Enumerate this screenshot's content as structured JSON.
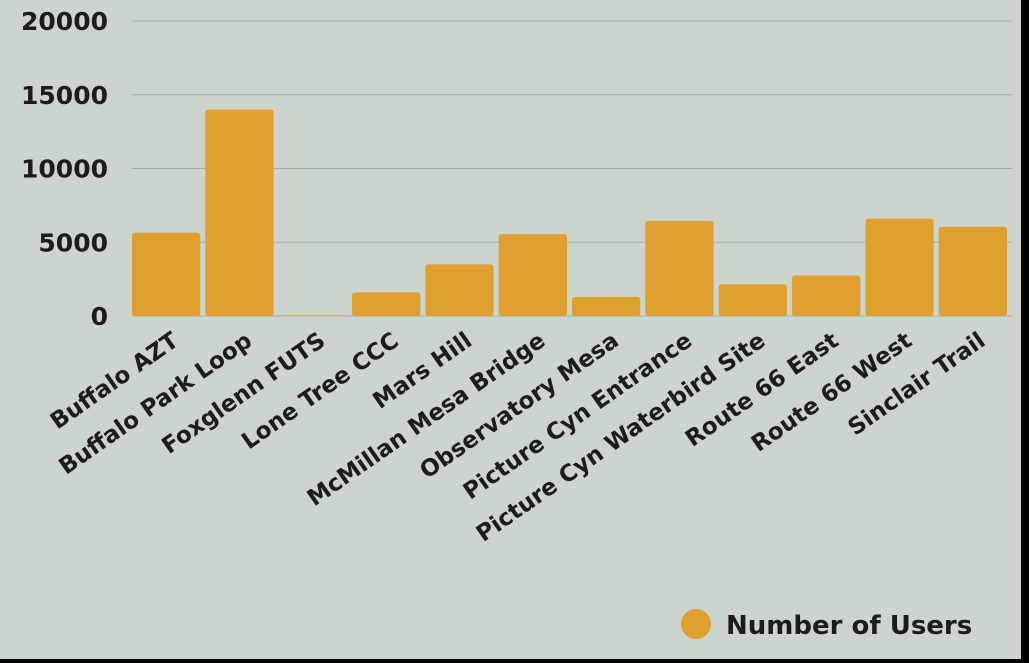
{
  "colors": {
    "background": "#cbd5cd",
    "bar": "#e0a030",
    "grid": "#a4aea6",
    "text": "#1c1c1c"
  },
  "chart_data": {
    "type": "bar",
    "categories": [
      "Buffalo AZT",
      "Buffalo Park Loop",
      "Foxglenn FUTS",
      "Lone Tree CCC",
      "Mars Hill",
      "McMillan Mesa Bridge",
      "Observatory Mesa",
      "Picture Cyn Entrance",
      "Picture Cyn Waterbird Site",
      "Route 66 East",
      "Route 66 West",
      "Sinclair Trail"
    ],
    "series": [
      {
        "name": "Number of Users",
        "values": [
          5650,
          14000,
          50,
          1600,
          3500,
          5550,
          1300,
          6450,
          2150,
          2750,
          6600,
          6050
        ]
      }
    ],
    "yticks": [
      0,
      5000,
      10000,
      15000,
      20000
    ],
    "ylim": [
      0,
      20000
    ],
    "grid": true,
    "legend_position": "bottom-right"
  }
}
